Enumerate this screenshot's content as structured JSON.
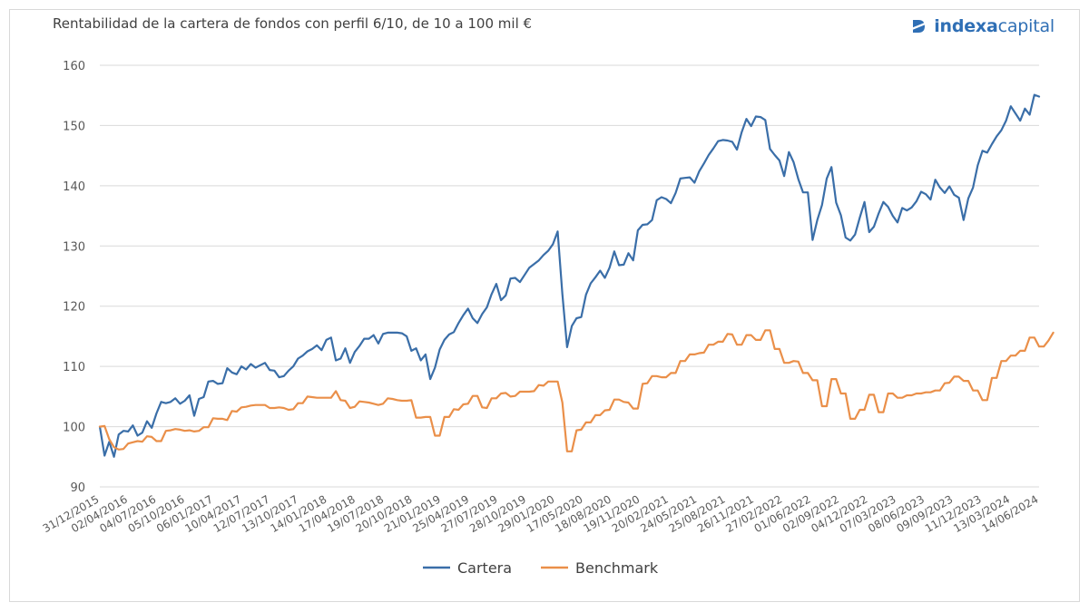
{
  "title": "Rentabilidad de la cartera de fondos con perfil 6/10, de 10 a 100 mil €",
  "logo": {
    "name_bold": "indexa",
    "name_light": "capital"
  },
  "colors": {
    "cartera": "#3a6ea8",
    "benchmark": "#ea8f49",
    "grid": "#d9d9d9",
    "text": "#595959",
    "brand": "#2f6fb5"
  },
  "chart_data": {
    "type": "line",
    "title": "Rentabilidad de la cartera de fondos con perfil 6/10, de 10 a 100 mil €",
    "xlabel": "",
    "ylabel": "",
    "ylim": [
      90,
      160
    ],
    "yticks": [
      90,
      100,
      110,
      120,
      130,
      140,
      150,
      160
    ],
    "grid": true,
    "legend": "bottom",
    "xtick_labels": [
      "31/12/2015",
      "02/04/2016",
      "04/07/2016",
      "05/10/2016",
      "06/01/2017",
      "10/04/2017",
      "12/07/2017",
      "13/10/2017",
      "14/01/2018",
      "17/04/2018",
      "19/07/2018",
      "20/10/2018",
      "21/01/2019",
      "25/04/2019",
      "27/07/2019",
      "28/10/2019",
      "29/01/2020",
      "17/05/2020",
      "18/08/2020",
      "19/11/2020",
      "20/02/2021",
      "24/05/2021",
      "25/08/2021",
      "26/11/2021",
      "27/02/2022",
      "01/06/2022",
      "02/09/2022",
      "04/12/2022",
      "07/03/2023",
      "08/06/2023",
      "09/09/2023",
      "11/12/2023",
      "13/03/2024",
      "14/06/2024"
    ],
    "series": [
      {
        "name": "Cartera",
        "color": "#3a6ea8",
        "values": [
          100,
          95.2,
          97.5,
          95,
          98.7,
          99.3,
          99.2,
          100.2,
          98.5,
          99,
          100.9,
          99.8,
          102.2,
          104.1,
          103.9,
          104.1,
          104.7,
          103.8,
          104.3,
          105.2,
          101.8,
          104.6,
          104.9,
          107.5,
          107.6,
          107.1,
          107.2,
          109.7,
          109,
          108.7,
          110,
          109.5,
          110.4,
          109.8,
          110.2,
          110.6,
          109.4,
          109.3,
          108.2,
          108.4,
          109.3,
          110,
          111.3,
          111.8,
          112.5,
          112.9,
          113.5,
          112.7,
          114.4,
          114.8,
          111,
          111.3,
          113,
          110.6,
          112.4,
          113.4,
          114.6,
          114.6,
          115.2,
          113.8,
          115.4,
          115.6,
          115.6,
          115.6,
          115.5,
          115,
          112.6,
          113,
          111,
          112,
          107.9,
          109.8,
          112.8,
          114.4,
          115.3,
          115.7,
          117.2,
          118.5,
          119.6,
          118,
          117.2,
          118.7,
          119.8,
          122,
          123.7,
          121,
          121.8,
          124.6,
          124.7,
          124,
          125.2,
          126.4,
          127,
          127.6,
          128.5,
          129.2,
          130.3,
          132.4,
          122,
          113.2,
          116.7,
          118,
          118.2,
          121.9,
          123.8,
          124.8,
          125.9,
          124.7,
          126.4,
          129.1,
          126.8,
          126.9,
          128.8,
          127.6,
          132.6,
          133.5,
          133.6,
          134.3,
          137.6,
          138.1,
          137.8,
          137.1,
          138.8,
          141.2,
          141.3,
          141.4,
          140.5,
          142.4,
          143.7,
          145.1,
          146.2,
          147.4,
          147.6,
          147.5,
          147.3,
          146,
          148.9,
          151.1,
          149.9,
          151.5,
          151.4,
          150.9,
          146.1,
          145.1,
          144.2,
          141.6,
          145.6,
          143.9,
          141.1,
          138.9,
          138.9,
          131,
          134.3,
          136.8,
          141.2,
          143.1,
          137.2,
          135.1,
          131.4,
          130.9,
          131.9,
          134.7,
          137.3,
          132.3,
          133.2,
          135.4,
          137.3,
          136.5,
          135,
          133.9,
          136.3,
          135.9,
          136.4,
          137.4,
          139,
          138.6,
          137.7,
          141,
          139.7,
          138.8,
          139.9,
          138.5,
          138,
          134.3,
          137.9,
          139.7,
          143.4,
          145.8,
          145.5,
          146.9,
          148.2,
          149.2,
          150.8,
          153.2,
          152,
          150.8,
          152.8,
          151.8,
          155.1,
          154.8
        ]
      },
      {
        "name": "Benchmark",
        "color": "#ea8f49",
        "values": [
          100,
          100.1,
          97.9,
          96.6,
          96.2,
          96.3,
          97.2,
          97.4,
          97.6,
          97.5,
          98.4,
          98.3,
          97.6,
          97.6,
          99.3,
          99.4,
          99.6,
          99.5,
          99.3,
          99.4,
          99.2,
          99.3,
          99.9,
          99.9,
          101.4,
          101.3,
          101.3,
          101.1,
          102.6,
          102.5,
          103.2,
          103.3,
          103.5,
          103.6,
          103.6,
          103.6,
          103.1,
          103.1,
          103.2,
          103.1,
          102.8,
          102.9,
          103.9,
          103.9,
          105,
          104.9,
          104.8,
          104.8,
          104.8,
          104.8,
          105.9,
          104.4,
          104.3,
          103.1,
          103.3,
          104.2,
          104.1,
          104,
          103.8,
          103.6,
          103.8,
          104.7,
          104.6,
          104.4,
          104.3,
          104.3,
          104.4,
          101.5,
          101.5,
          101.6,
          101.6,
          98.5,
          98.5,
          101.6,
          101.6,
          102.9,
          102.8,
          103.7,
          103.8,
          105.1,
          105.1,
          103.2,
          103.1,
          104.7,
          104.7,
          105.5,
          105.6,
          105,
          105.1,
          105.8,
          105.8,
          105.8,
          105.9,
          106.9,
          106.8,
          107.5,
          107.5,
          107.5,
          104,
          95.9,
          95.9,
          99.4,
          99.5,
          100.7,
          100.7,
          101.9,
          101.9,
          102.7,
          102.8,
          104.5,
          104.5,
          104.1,
          104,
          103,
          103,
          107.1,
          107.2,
          108.4,
          108.4,
          108.2,
          108.2,
          108.9,
          108.9,
          110.9,
          110.9,
          112,
          112,
          112.2,
          112.3,
          113.6,
          113.6,
          114.1,
          114.1,
          115.4,
          115.3,
          113.6,
          113.6,
          115.2,
          115.2,
          114.4,
          114.4,
          116,
          116,
          112.9,
          112.9,
          110.6,
          110.6,
          110.9,
          110.8,
          108.9,
          108.9,
          107.7,
          107.7,
          103.4,
          103.4,
          107.9,
          107.9,
          105.5,
          105.5,
          101.3,
          101.3,
          102.8,
          102.8,
          105.3,
          105.3,
          102.4,
          102.4,
          105.5,
          105.5,
          104.8,
          104.8,
          105.2,
          105.2,
          105.5,
          105.5,
          105.7,
          105.7,
          106,
          106,
          107.2,
          107.3,
          108.3,
          108.3,
          107.6,
          107.6,
          106,
          106,
          104.4,
          104.4,
          108.1,
          108.1,
          110.9,
          110.9,
          111.8,
          111.8,
          112.6,
          112.6,
          114.8,
          114.8,
          113.3,
          113.3,
          114.3,
          115.6
        ]
      }
    ]
  }
}
